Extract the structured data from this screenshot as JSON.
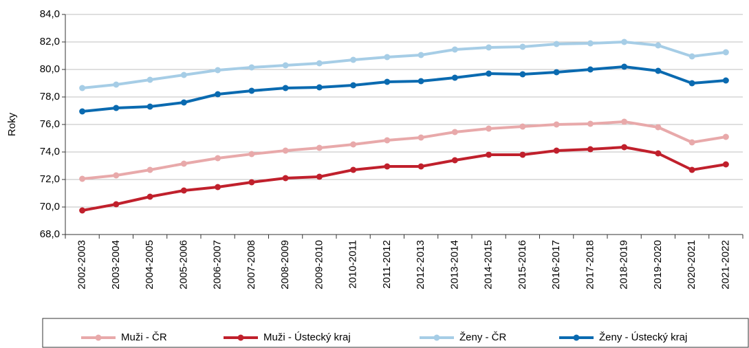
{
  "chart_data": {
    "type": "line",
    "y_label": "Roky",
    "categories": [
      "2002-2003",
      "2003-2004",
      "2004-2005",
      "2005-2006",
      "2006-2007",
      "2007-2008",
      "2008-2009",
      "2009-2010",
      "2010-2011",
      "2011-2012",
      "2012-2013",
      "2013-2014",
      "2014-2015",
      "2015-2016",
      "2016-2017",
      "2017-2018",
      "2018-2019",
      "2019-2020",
      "2020-2021",
      "2021-2022"
    ],
    "series": [
      {
        "name": "Muži - ČR",
        "color": "#e8a9aa",
        "values": [
          72.05,
          72.3,
          72.7,
          73.15,
          73.55,
          73.85,
          74.1,
          74.3,
          74.55,
          74.85,
          75.05,
          75.45,
          75.7,
          75.85,
          76.0,
          76.05,
          76.2,
          75.8,
          74.7,
          75.1
        ]
      },
      {
        "name": "Muži - Ústecký kraj",
        "color": "#c0202c",
        "values": [
          69.75,
          70.2,
          70.75,
          71.2,
          71.45,
          71.8,
          72.1,
          72.2,
          72.7,
          72.95,
          72.95,
          73.4,
          73.8,
          73.8,
          74.1,
          74.2,
          74.35,
          73.9,
          72.7,
          73.1
        ]
      },
      {
        "name": "Ženy - ČR",
        "color": "#a6cde6",
        "values": [
          78.65,
          78.9,
          79.25,
          79.6,
          79.95,
          80.15,
          80.3,
          80.45,
          80.7,
          80.9,
          81.05,
          81.45,
          81.6,
          81.65,
          81.85,
          81.9,
          82.0,
          81.75,
          80.95,
          81.25
        ]
      },
      {
        "name": "Ženy - Ústecký kraj",
        "color": "#0a6ab0",
        "values": [
          76.95,
          77.2,
          77.3,
          77.6,
          78.2,
          78.45,
          78.65,
          78.7,
          78.85,
          79.1,
          79.15,
          79.4,
          79.7,
          79.65,
          79.8,
          80.0,
          80.2,
          79.9,
          79.0,
          79.2
        ]
      }
    ],
    "ylim": [
      68,
      84
    ],
    "yticks": [
      {
        "value": 68,
        "label": "68,0"
      },
      {
        "value": 70,
        "label": "70,0"
      },
      {
        "value": 72,
        "label": "72,0"
      },
      {
        "value": 74,
        "label": "74,0"
      },
      {
        "value": 76,
        "label": "76,0"
      },
      {
        "value": 78,
        "label": "78,0"
      },
      {
        "value": 80,
        "label": "80,0"
      },
      {
        "value": 82,
        "label": "82,0"
      },
      {
        "value": 84,
        "label": "84,0"
      }
    ],
    "grid": true,
    "legend": "bottom"
  }
}
